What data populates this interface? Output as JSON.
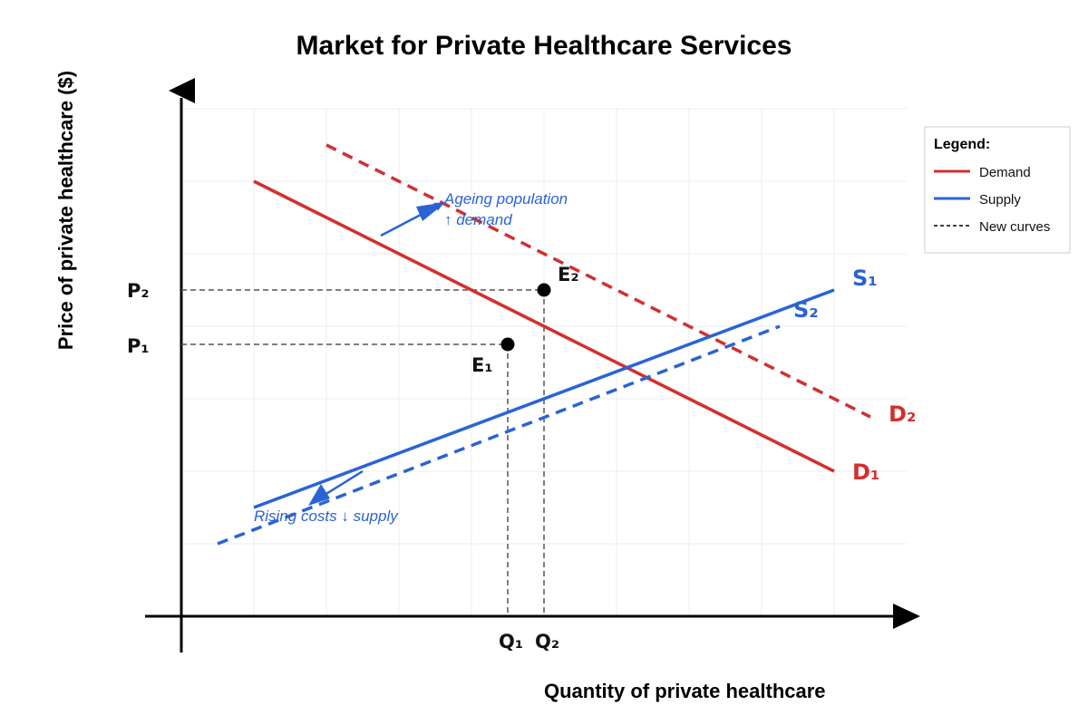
{
  "title": "Market for Private Healthcare Services",
  "axes": {
    "x_label": "Quantity of private healthcare",
    "y_label": "Price of private healthcare ($)"
  },
  "colors": {
    "demand": "#d32f2f",
    "supply": "#2a63d4",
    "guide": "#555555",
    "grid": "#e8e8e8",
    "axis": "#000000"
  },
  "curves": {
    "d1": "D₁",
    "d2": "D₂",
    "s1": "S₁",
    "s2": "S₂"
  },
  "equilibria": {
    "e1": "E₁",
    "e2": "E₂"
  },
  "prices": {
    "p1": "P₁",
    "p2": "P₂"
  },
  "quantities": {
    "q1": "Q₁",
    "q2": "Q₂"
  },
  "annotations": {
    "demand_line1": "Ageing population",
    "demand_line2": "↑ demand",
    "supply_line1": "Rising costs ↓ supply"
  },
  "legend": {
    "title": "Legend:",
    "demand": "Demand",
    "supply": "Supply",
    "new_curves": "New curves"
  }
}
